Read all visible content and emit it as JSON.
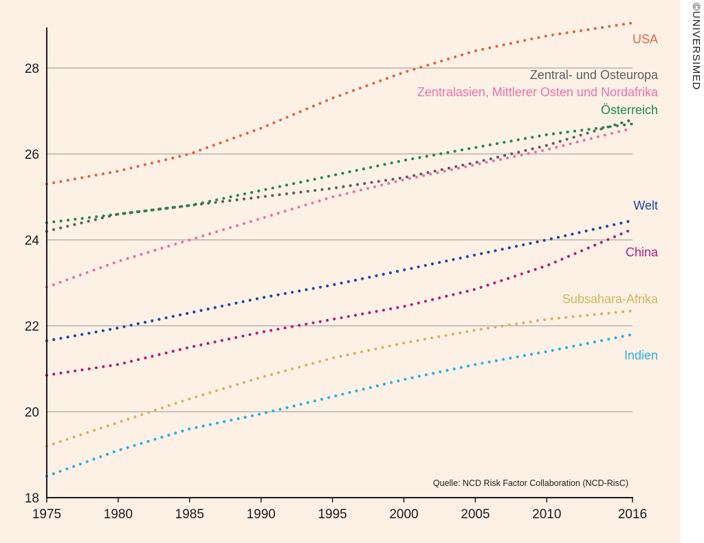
{
  "colors": {
    "background": "#fdf1e6",
    "grid": "#a9a6a3",
    "axis": "#1a1a1a"
  },
  "credit": "©UNIVERSIMED",
  "chart_data": {
    "type": "line",
    "line_style": "dotted",
    "grid": "horizontal",
    "xlabel": "",
    "ylabel": "",
    "xlim": [
      1975,
      2016
    ],
    "ylim": [
      18,
      29
    ],
    "x_ticks": [
      1975,
      1980,
      1985,
      1990,
      1995,
      2000,
      2005,
      2010,
      2016
    ],
    "y_ticks": [
      18,
      20,
      22,
      24,
      26,
      28
    ],
    "source": "Quelle: NCD Risk Factor Collaboration (NCD-RisC)",
    "series": [
      {
        "name": "USA",
        "color": "#e4643f",
        "points": [
          [
            1975,
            25.3
          ],
          [
            1980,
            25.6
          ],
          [
            1985,
            26.0
          ],
          [
            1990,
            26.6
          ],
          [
            1995,
            27.3
          ],
          [
            2000,
            27.9
          ],
          [
            2005,
            28.4
          ],
          [
            2010,
            28.75
          ],
          [
            2016,
            29.05
          ]
        ]
      },
      {
        "name": "Zentral- und Osteuropa",
        "color": "#5e5e5e",
        "points": [
          [
            1975,
            24.2
          ],
          [
            1980,
            24.6
          ],
          [
            1985,
            24.8
          ],
          [
            1990,
            25.0
          ],
          [
            1995,
            25.2
          ],
          [
            2000,
            25.45
          ],
          [
            2005,
            25.8
          ],
          [
            2010,
            26.2
          ],
          [
            2016,
            26.8
          ]
        ]
      },
      {
        "name": "Zentralasien, Mittlerer Osten und Nordafrika",
        "color": "#e971ad",
        "points": [
          [
            1975,
            22.9
          ],
          [
            1980,
            23.5
          ],
          [
            1985,
            24.0
          ],
          [
            1990,
            24.5
          ],
          [
            1995,
            25.0
          ],
          [
            2000,
            25.4
          ],
          [
            2005,
            25.75
          ],
          [
            2010,
            26.1
          ],
          [
            2016,
            26.6
          ]
        ]
      },
      {
        "name": "Österreich",
        "color": "#1e8a4c",
        "points": [
          [
            1975,
            24.4
          ],
          [
            1980,
            24.6
          ],
          [
            1985,
            24.8
          ],
          [
            1990,
            25.15
          ],
          [
            1995,
            25.5
          ],
          [
            2000,
            25.85
          ],
          [
            2005,
            26.15
          ],
          [
            2010,
            26.45
          ],
          [
            2016,
            26.7
          ]
        ]
      },
      {
        "name": "Welt",
        "color": "#1f47a0",
        "points": [
          [
            1975,
            21.65
          ],
          [
            1980,
            21.95
          ],
          [
            1985,
            22.3
          ],
          [
            1990,
            22.65
          ],
          [
            1995,
            22.95
          ],
          [
            2000,
            23.3
          ],
          [
            2005,
            23.65
          ],
          [
            2010,
            24.0
          ],
          [
            2016,
            24.45
          ]
        ]
      },
      {
        "name": "China",
        "color": "#b41c7c",
        "points": [
          [
            1975,
            20.85
          ],
          [
            1980,
            21.1
          ],
          [
            1985,
            21.5
          ],
          [
            1990,
            21.85
          ],
          [
            1995,
            22.15
          ],
          [
            2000,
            22.45
          ],
          [
            2005,
            22.85
          ],
          [
            2010,
            23.4
          ],
          [
            2016,
            24.25
          ]
        ]
      },
      {
        "name": "Subsahara-Afrika",
        "color": "#d6b55f",
        "points": [
          [
            1975,
            19.2
          ],
          [
            1980,
            19.75
          ],
          [
            1985,
            20.3
          ],
          [
            1990,
            20.8
          ],
          [
            1995,
            21.25
          ],
          [
            2000,
            21.6
          ],
          [
            2005,
            21.9
          ],
          [
            2010,
            22.15
          ],
          [
            2016,
            22.35
          ]
        ]
      },
      {
        "name": "Indien",
        "color": "#2ab0e1",
        "points": [
          [
            1975,
            18.5
          ],
          [
            1980,
            19.1
          ],
          [
            1985,
            19.6
          ],
          [
            1990,
            19.95
          ],
          [
            1995,
            20.35
          ],
          [
            2000,
            20.75
          ],
          [
            2005,
            21.1
          ],
          [
            2010,
            21.4
          ],
          [
            2016,
            21.8
          ]
        ]
      }
    ]
  }
}
